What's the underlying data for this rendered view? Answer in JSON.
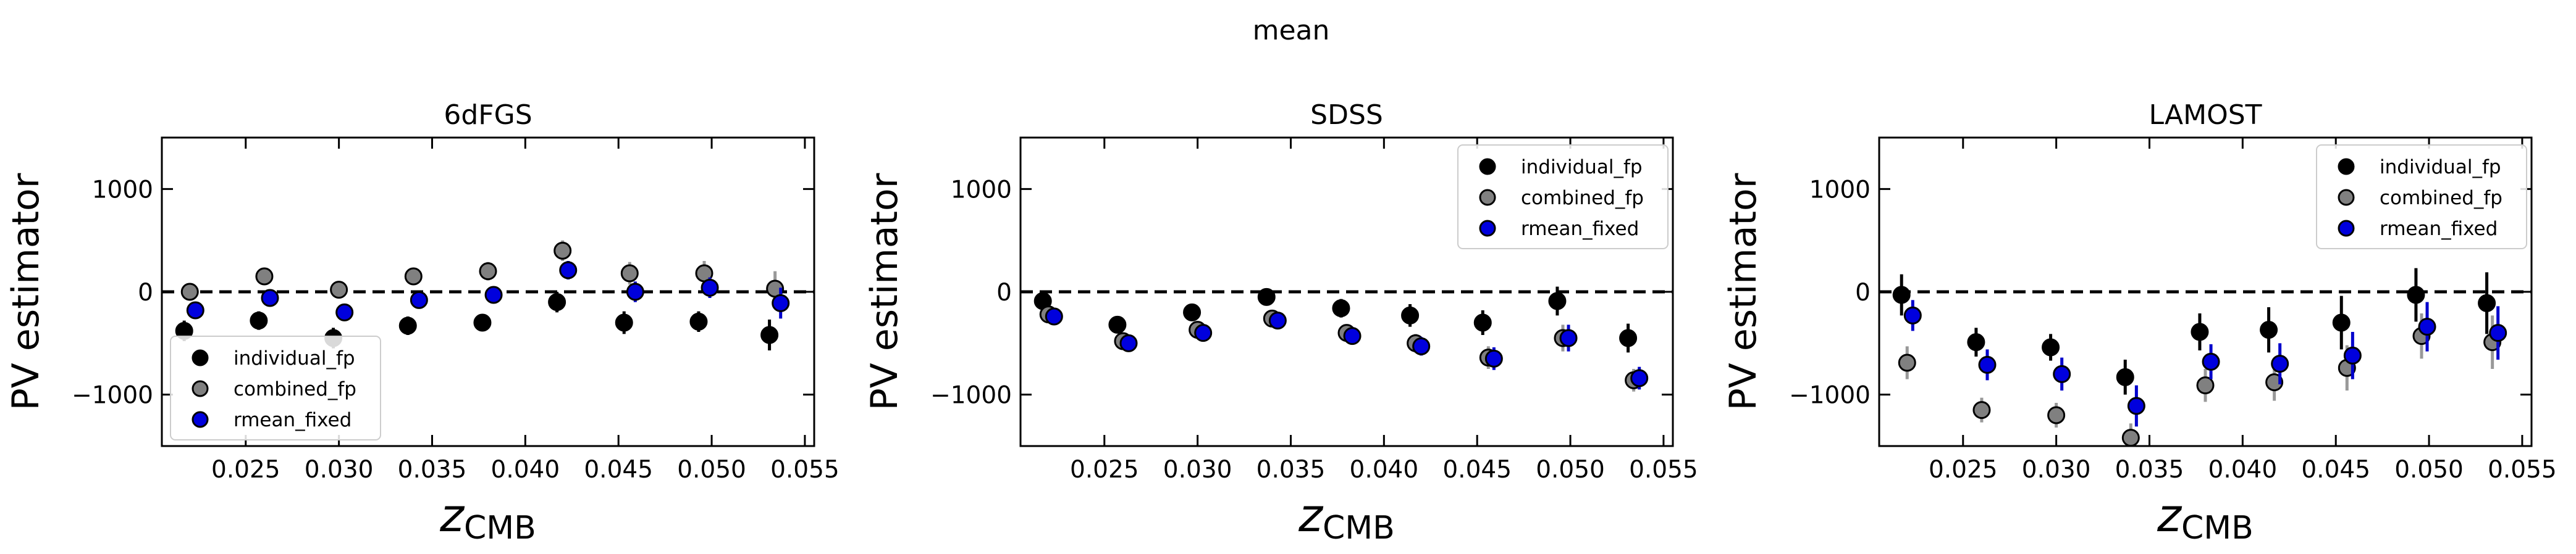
{
  "figure": {
    "suptitle": "mean"
  },
  "legend_labels": [
    "individual_fp",
    "combined_fp",
    "rmean_fixed"
  ],
  "chart_data": [
    {
      "type": "scatter",
      "title": "6dFGS",
      "ylabel": "PV estimator",
      "xlabel_main": "z",
      "xlabel_sub": "CMB",
      "xlim": [
        0.0205,
        0.0555
      ],
      "ylim": [
        -1500,
        1500
      ],
      "xticks": [
        "0.025",
        "0.030",
        "0.035",
        "0.040",
        "0.045",
        "0.050",
        "0.055"
      ],
      "xtick_values": [
        0.025,
        0.03,
        0.035,
        0.04,
        0.045,
        0.05,
        0.055
      ],
      "yticks": [
        "1000",
        "0",
        "−1000"
      ],
      "ytick_values": [
        1000,
        0,
        -1000
      ],
      "zero_line": true,
      "legend_position": "lower-left",
      "series": [
        {
          "name": "individual_fp",
          "color": "#000000",
          "errcolor": "#000000",
          "x": [
            0.0217,
            0.0257,
            0.0297,
            0.0337,
            0.0377,
            0.0417,
            0.0453,
            0.0493,
            0.0531
          ],
          "y": [
            -380,
            -280,
            -450,
            -330,
            -300,
            -100,
            -300,
            -290,
            -420
          ],
          "err": [
            100,
            90,
            100,
            90,
            80,
            100,
            110,
            100,
            150
          ]
        },
        {
          "name": "combined_fp",
          "color": "#808080",
          "errcolor": "#999999",
          "x": [
            0.022,
            0.026,
            0.03,
            0.034,
            0.038,
            0.042,
            0.0456,
            0.0496,
            0.0534
          ],
          "y": [
            0,
            150,
            20,
            150,
            200,
            400,
            180,
            180,
            30
          ],
          "err": [
            80,
            70,
            60,
            80,
            90,
            100,
            110,
            120,
            170
          ]
        },
        {
          "name": "rmean_fixed",
          "color": "#0000dd",
          "errcolor": "#0000cc",
          "x": [
            0.0223,
            0.0263,
            0.0303,
            0.0343,
            0.0383,
            0.0423,
            0.0459,
            0.0499,
            0.0537
          ],
          "y": [
            -180,
            -60,
            -200,
            -80,
            -30,
            210,
            0,
            40,
            -110
          ],
          "err": [
            70,
            60,
            60,
            70,
            80,
            90,
            100,
            100,
            150
          ]
        }
      ]
    },
    {
      "type": "scatter",
      "title": "SDSS",
      "ylabel": "PV estimator",
      "xlabel_main": "z",
      "xlabel_sub": "CMB",
      "xlim": [
        0.0205,
        0.0555
      ],
      "ylim": [
        -1500,
        1500
      ],
      "xticks": [
        "0.025",
        "0.030",
        "0.035",
        "0.040",
        "0.045",
        "0.050",
        "0.055"
      ],
      "xtick_values": [
        0.025,
        0.03,
        0.035,
        0.04,
        0.045,
        0.05,
        0.055
      ],
      "yticks": [
        "1000",
        "0",
        "−1000"
      ],
      "ytick_values": [
        1000,
        0,
        -1000
      ],
      "zero_line": true,
      "legend_position": "upper-right",
      "series": [
        {
          "name": "individual_fp",
          "color": "#000000",
          "errcolor": "#000000",
          "x": [
            0.0217,
            0.0257,
            0.0297,
            0.0337,
            0.0377,
            0.0414,
            0.0453,
            0.0493,
            0.0531
          ],
          "y": [
            -90,
            -320,
            -200,
            -50,
            -160,
            -230,
            -300,
            -90,
            -450
          ],
          "err": [
            70,
            70,
            70,
            60,
            90,
            110,
            120,
            140,
            140
          ]
        },
        {
          "name": "combined_fp",
          "color": "#808080",
          "errcolor": "#999999",
          "x": [
            0.022,
            0.026,
            0.03,
            0.034,
            0.038,
            0.0417,
            0.0456,
            0.0496,
            0.0534
          ],
          "y": [
            -220,
            -480,
            -370,
            -260,
            -400,
            -500,
            -640,
            -450,
            -860
          ],
          "err": [
            50,
            60,
            70,
            70,
            80,
            90,
            110,
            130,
            110
          ]
        },
        {
          "name": "rmean_fixed",
          "color": "#0000dd",
          "errcolor": "#0000cc",
          "x": [
            0.0223,
            0.0263,
            0.0303,
            0.0343,
            0.0383,
            0.042,
            0.0459,
            0.0499,
            0.0537
          ],
          "y": [
            -240,
            -500,
            -400,
            -280,
            -430,
            -530,
            -650,
            -450,
            -840
          ],
          "err": [
            50,
            60,
            70,
            60,
            80,
            90,
            110,
            130,
            110
          ]
        }
      ]
    },
    {
      "type": "scatter",
      "title": "LAMOST",
      "ylabel": "PV estimator",
      "xlabel_main": "z",
      "xlabel_sub": "CMB",
      "xlim": [
        0.0205,
        0.0555
      ],
      "ylim": [
        -1500,
        1500
      ],
      "xticks": [
        "0.025",
        "0.030",
        "0.035",
        "0.040",
        "0.045",
        "0.050",
        "0.055"
      ],
      "xtick_values": [
        0.025,
        0.03,
        0.035,
        0.04,
        0.045,
        0.05,
        0.055
      ],
      "yticks": [
        "1000",
        "0",
        "−1000"
      ],
      "ytick_values": [
        1000,
        0,
        -1000
      ],
      "zero_line": true,
      "legend_position": "upper-right",
      "series": [
        {
          "name": "individual_fp",
          "color": "#000000",
          "errcolor": "#000000",
          "x": [
            0.0217,
            0.0257,
            0.0297,
            0.0337,
            0.0377,
            0.0414,
            0.0453,
            0.0493,
            0.0531
          ],
          "y": [
            -30,
            -490,
            -540,
            -830,
            -390,
            -370,
            -300,
            -30,
            -110
          ],
          "err": [
            200,
            140,
            130,
            170,
            180,
            220,
            260,
            260,
            300
          ]
        },
        {
          "name": "combined_fp",
          "color": "#808080",
          "errcolor": "#999999",
          "x": [
            0.022,
            0.026,
            0.03,
            0.034,
            0.038,
            0.0417,
            0.0456,
            0.0496,
            0.0534
          ],
          "y": [
            -690,
            -1150,
            -1200,
            -1420,
            -910,
            -880,
            -740,
            -430,
            -490
          ],
          "err": [
            160,
            120,
            120,
            140,
            160,
            180,
            220,
            220,
            260
          ]
        },
        {
          "name": "rmean_fixed",
          "color": "#0000dd",
          "errcolor": "#0000cc",
          "x": [
            0.0223,
            0.0263,
            0.0303,
            0.0343,
            0.0383,
            0.042,
            0.0459,
            0.0499,
            0.0537
          ],
          "y": [
            -230,
            -710,
            -800,
            -1110,
            -680,
            -700,
            -620,
            -340,
            -400
          ],
          "err": [
            150,
            150,
            160,
            200,
            170,
            200,
            230,
            240,
            260
          ]
        }
      ]
    }
  ]
}
